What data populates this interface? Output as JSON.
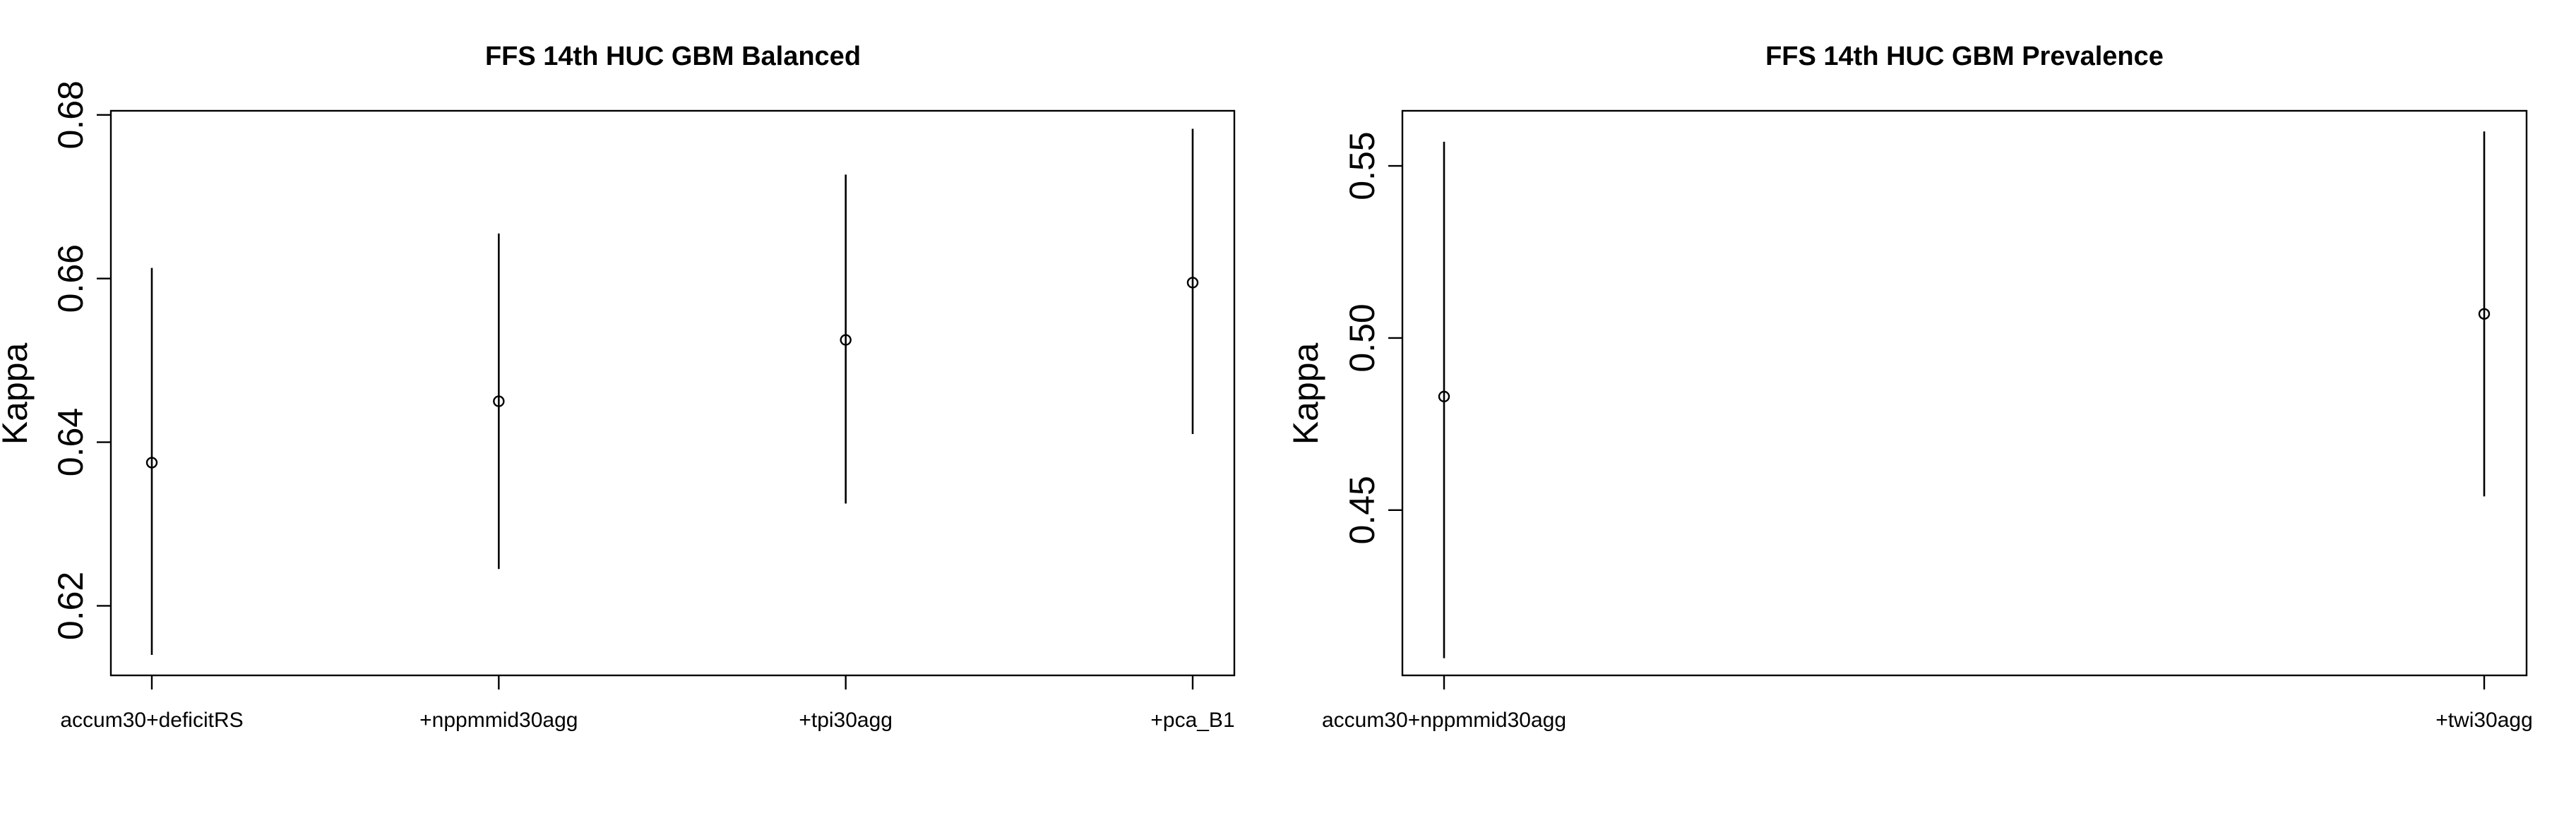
{
  "chart_data": [
    {
      "type": "scatter",
      "title": "FFS 14th HUC GBM Balanced",
      "xlabel": "",
      "ylabel": "Kappa",
      "categories": [
        "accum30+deficitRS",
        "+nppmmid30agg",
        "+tpi30agg",
        "+pca_B1"
      ],
      "values": [
        0.6375,
        0.645,
        0.6525,
        0.6595
      ],
      "upper": [
        0.6613,
        0.6655,
        0.6727,
        0.6783
      ],
      "lower": [
        0.614,
        0.6245,
        0.6325,
        0.641
      ],
      "yticks": [
        0.62,
        0.64,
        0.66,
        0.68
      ],
      "ylim": [
        0.6115,
        0.6805
      ],
      "grid": false,
      "legend": "none"
    },
    {
      "type": "scatter",
      "title": "FFS 14th HUC GBM Prevalence",
      "xlabel": "",
      "ylabel": "Kappa",
      "categories": [
        "accum30+nppmmid30agg",
        "+twi30agg"
      ],
      "values": [
        0.483,
        0.507
      ],
      "upper": [
        0.557,
        0.56
      ],
      "lower": [
        0.407,
        0.454
      ],
      "yticks": [
        0.45,
        0.5,
        0.55
      ],
      "ylim": [
        0.402,
        0.566
      ],
      "grid": false,
      "legend": "none"
    }
  ]
}
